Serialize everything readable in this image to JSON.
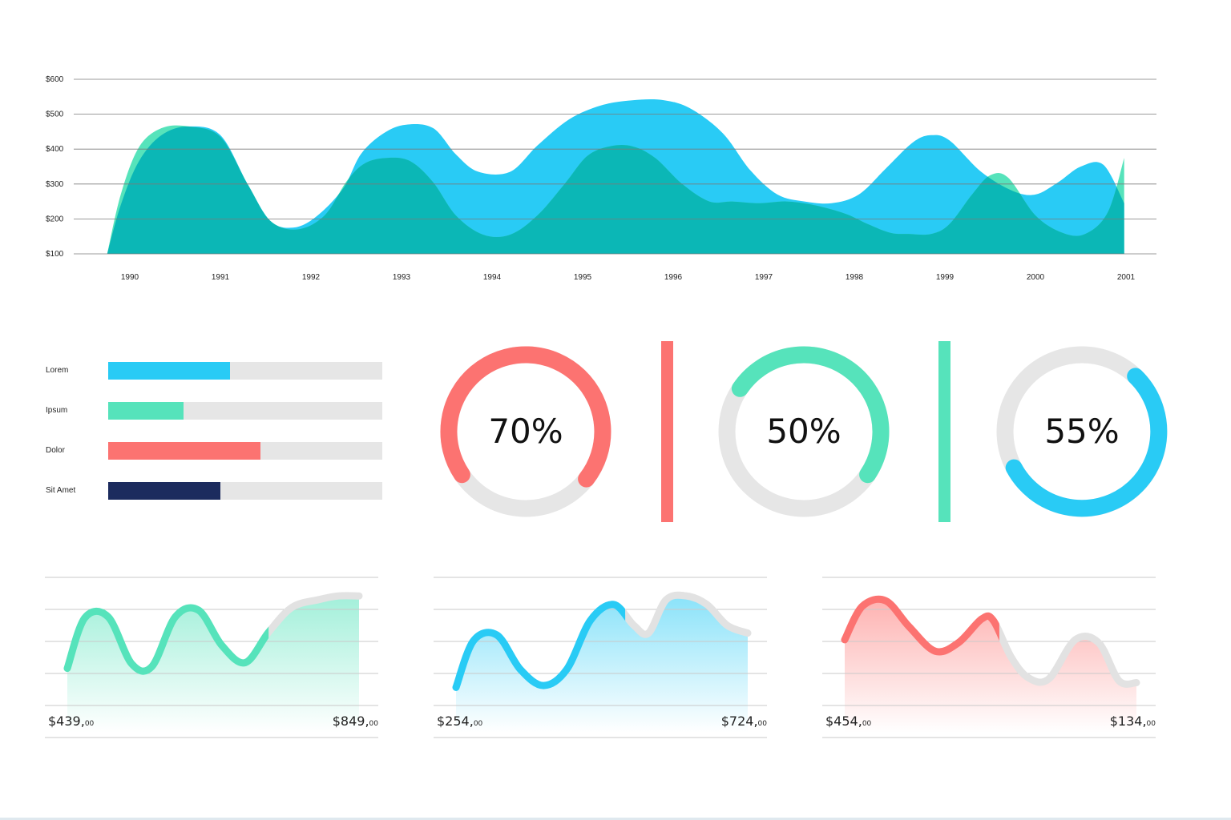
{
  "colors": {
    "blue": "#29cbf5",
    "green": "#56e3bb",
    "teal": "#0bb7b6",
    "red": "#fc7371",
    "navy": "#1c2b5e",
    "track": "#e6e6e6",
    "grid": "#7a7a7a"
  },
  "chart_data": [
    {
      "type": "area",
      "x": [
        "1990",
        "1991",
        "1992",
        "1993",
        "1994",
        "1995",
        "1996",
        "1997",
        "1998",
        "1999",
        "2000",
        "2001"
      ],
      "yticks": [
        "$600",
        "$500",
        "$400",
        "$300",
        "$200",
        "$100"
      ],
      "ylim": [
        100,
        600
      ],
      "grid": true,
      "series": [
        {
          "x": [
            1989.75,
            1989.9,
            1990.1,
            1990.35,
            1990.65,
            1991.0,
            1991.3,
            1991.55,
            1991.8,
            1992.05,
            1992.35,
            1992.55,
            1992.8,
            1993.05,
            1993.35,
            1993.6,
            1993.85,
            1994.2,
            1994.5,
            1994.85,
            1995.2,
            1995.55,
            1995.9,
            1996.2,
            1996.55,
            1996.85,
            1997.15,
            1997.45,
            1997.75,
            1998.05,
            1998.35,
            1998.65,
            1998.85,
            1999.05,
            1999.4,
            1999.75,
            2000.0,
            2000.25,
            2000.5,
            2000.75,
            2000.98
          ],
          "values": [
            100,
            240,
            365,
            440,
            465,
            440,
            300,
            195,
            175,
            205,
            285,
            385,
            445,
            470,
            460,
            385,
            335,
            335,
            410,
            485,
            525,
            540,
            540,
            515,
            445,
            340,
            270,
            250,
            245,
            270,
            345,
            420,
            440,
            425,
            335,
            280,
            270,
            305,
            350,
            355,
            245
          ]
        },
        {
          "x": [
            1989.75,
            1989.9,
            1990.1,
            1990.35,
            1990.65,
            1991.0,
            1991.3,
            1991.55,
            1991.85,
            1992.15,
            1992.4,
            1992.6,
            1992.85,
            1993.1,
            1993.35,
            1993.6,
            1993.9,
            1994.2,
            1994.5,
            1994.8,
            1995.05,
            1995.3,
            1995.55,
            1995.8,
            1996.1,
            1996.4,
            1996.65,
            1996.95,
            1997.25,
            1997.55,
            1997.9,
            1998.15,
            1998.4,
            1998.6,
            1998.85,
            1999.05,
            1999.3,
            1999.5,
            1999.7,
            2000.0,
            2000.3,
            2000.55,
            2000.8,
            2000.98
          ],
          "values": [
            100,
            270,
            405,
            460,
            465,
            435,
            300,
            195,
            170,
            210,
            310,
            360,
            375,
            365,
            305,
            210,
            155,
            155,
            210,
            300,
            380,
            408,
            408,
            375,
            300,
            250,
            250,
            245,
            250,
            240,
            215,
            185,
            160,
            157,
            157,
            185,
            270,
            325,
            318,
            210,
            160,
            157,
            220,
            375
          ]
        }
      ]
    },
    {
      "type": "bar",
      "orientation": "horizontal",
      "categories": [
        "Lorem",
        "Ipsum",
        "Dolor",
        "Sit Amet"
      ],
      "values": [
        0.445,
        0.275,
        0.555,
        0.41
      ],
      "colors": [
        "#29cbf5",
        "#56e3bb",
        "#fc7371",
        "#1c2b5e"
      ]
    },
    {
      "type": "pie",
      "gauges": [
        {
          "label": "70%",
          "value": 0.7,
          "color": "#fc7371"
        },
        {
          "label": "50%",
          "value": 0.5,
          "color": "#56e3bb"
        },
        {
          "label": "55%",
          "value": 0.55,
          "color": "#29cbf5"
        }
      ]
    },
    {
      "type": "line",
      "sparklines": [
        {
          "color": "#56e3bb",
          "start": "$439,",
          "start_cents": "00",
          "end": "$849,",
          "end_cents": "00",
          "x": [
            0,
            0.06,
            0.14,
            0.22,
            0.29,
            0.37,
            0.45,
            0.53,
            0.61,
            0.69,
            0.77,
            0.86,
            0.93,
            1.0
          ],
          "values": [
            0.23,
            0.76,
            0.77,
            0.28,
            0.25,
            0.77,
            0.84,
            0.47,
            0.29,
            0.61,
            0.87,
            0.95,
            0.99,
            0.99
          ],
          "active_until": 0.69
        },
        {
          "color": "#29cbf5",
          "start": "$254,",
          "start_cents": "00",
          "end": "$724,",
          "end_cents": "00",
          "x": [
            0,
            0.06,
            0.14,
            0.22,
            0.3,
            0.38,
            0.46,
            0.54,
            0.61,
            0.66,
            0.72,
            0.79,
            0.86,
            0.93,
            1.0
          ],
          "values": [
            0.03,
            0.52,
            0.58,
            0.22,
            0.05,
            0.22,
            0.73,
            0.9,
            0.68,
            0.6,
            0.95,
            0.99,
            0.9,
            0.68,
            0.6
          ],
          "active_until": 0.58
        },
        {
          "color": "#fc7371",
          "start": "$454,",
          "start_cents": "00",
          "end": "$134,",
          "end_cents": "00",
          "x": [
            0,
            0.06,
            0.14,
            0.22,
            0.31,
            0.39,
            0.47,
            0.51,
            0.57,
            0.63,
            0.7,
            0.79,
            0.87,
            0.94,
            1.0
          ],
          "values": [
            0.53,
            0.88,
            0.94,
            0.67,
            0.41,
            0.5,
            0.75,
            0.73,
            0.35,
            0.13,
            0.12,
            0.53,
            0.5,
            0.1,
            0.08
          ],
          "active_until": 0.53
        }
      ]
    }
  ]
}
